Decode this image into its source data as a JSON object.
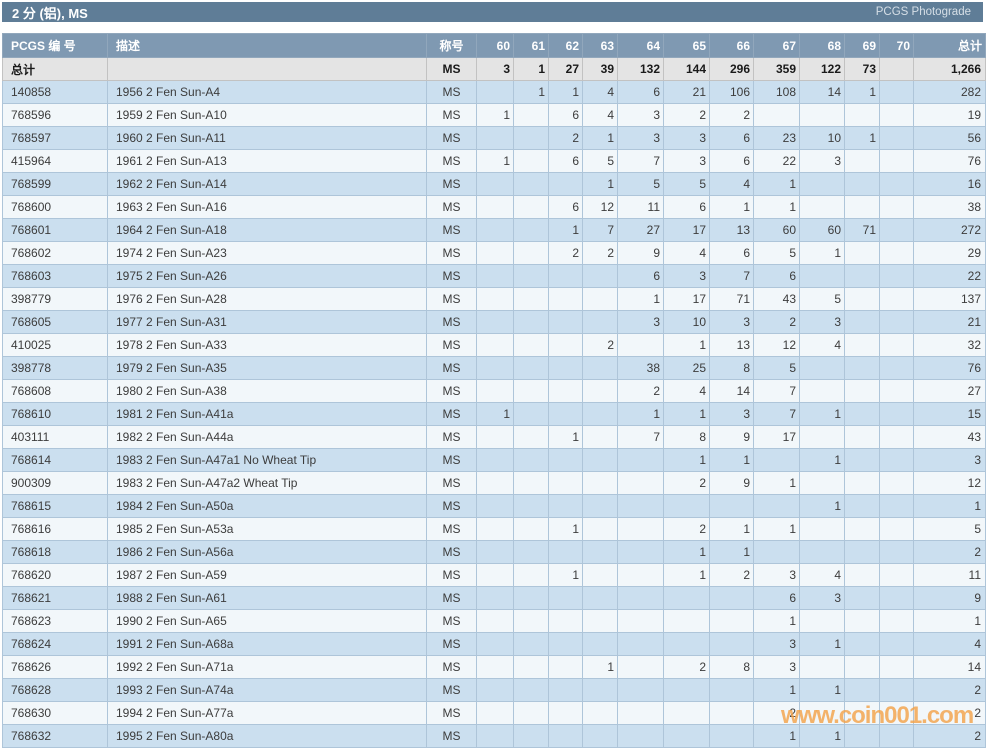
{
  "title_bar": {
    "title": "2 分 (铝), MS",
    "right_link": "PCGS Photograde"
  },
  "watermark": "www.coin001.com",
  "colors": {
    "title_bar_bg": "#5F7D97",
    "header_bg": "#7F99B2",
    "row_blue": "#CBDFEF",
    "row_white": "#F2F7FA",
    "totals_bg": "#E4E4E4",
    "pcgs_link": "#BE7A52",
    "watermark": "#F3A046"
  },
  "table": {
    "columns": [
      "PCGS 编 号",
      "描述",
      "称号",
      "60",
      "61",
      "62",
      "63",
      "64",
      "65",
      "66",
      "67",
      "68",
      "69",
      "70",
      "总计"
    ],
    "totals": {
      "label": "总计",
      "desc": "",
      "designation": "MS",
      "grades": [
        "3",
        "1",
        "27",
        "39",
        "132",
        "144",
        "296",
        "359",
        "122",
        "73",
        ""
      ],
      "total": "1,266"
    },
    "rows": [
      {
        "pcgs": "140858",
        "desc": "1956 2 Fen Sun-A4",
        "designation": "MS",
        "grades": [
          "",
          "1",
          "1",
          "4",
          "6",
          "21",
          "106",
          "108",
          "14",
          "1",
          ""
        ],
        "total": "282"
      },
      {
        "pcgs": "768596",
        "desc": "1959 2 Fen Sun-A10",
        "designation": "MS",
        "grades": [
          "1",
          "",
          "6",
          "4",
          "3",
          "2",
          "2",
          "",
          "",
          "",
          ""
        ],
        "total": "19"
      },
      {
        "pcgs": "768597",
        "desc": "1960 2 Fen Sun-A11",
        "designation": "MS",
        "grades": [
          "",
          "",
          "2",
          "1",
          "3",
          "3",
          "6",
          "23",
          "10",
          "1",
          ""
        ],
        "total": "56"
      },
      {
        "pcgs": "415964",
        "desc": "1961 2 Fen Sun-A13",
        "designation": "MS",
        "grades": [
          "1",
          "",
          "6",
          "5",
          "7",
          "3",
          "6",
          "22",
          "3",
          "",
          ""
        ],
        "total": "76"
      },
      {
        "pcgs": "768599",
        "desc": "1962 2 Fen Sun-A14",
        "designation": "MS",
        "grades": [
          "",
          "",
          "",
          "1",
          "5",
          "5",
          "4",
          "1",
          "",
          "",
          ""
        ],
        "total": "16"
      },
      {
        "pcgs": "768600",
        "desc": "1963 2 Fen Sun-A16",
        "designation": "MS",
        "grades": [
          "",
          "",
          "6",
          "12",
          "11",
          "6",
          "1",
          "1",
          "",
          "",
          ""
        ],
        "total": "38"
      },
      {
        "pcgs": "768601",
        "desc": "1964 2 Fen Sun-A18",
        "designation": "MS",
        "grades": [
          "",
          "",
          "1",
          "7",
          "27",
          "17",
          "13",
          "60",
          "60",
          "71",
          ""
        ],
        "total": "272"
      },
      {
        "pcgs": "768602",
        "desc": "1974 2 Fen Sun-A23",
        "designation": "MS",
        "grades": [
          "",
          "",
          "2",
          "2",
          "9",
          "4",
          "6",
          "5",
          "1",
          "",
          ""
        ],
        "total": "29"
      },
      {
        "pcgs": "768603",
        "desc": "1975 2 Fen Sun-A26",
        "designation": "MS",
        "grades": [
          "",
          "",
          "",
          "",
          "6",
          "3",
          "7",
          "6",
          "",
          "",
          ""
        ],
        "total": "22"
      },
      {
        "pcgs": "398779",
        "desc": "1976 2 Fen Sun-A28",
        "designation": "MS",
        "grades": [
          "",
          "",
          "",
          "",
          "1",
          "17",
          "71",
          "43",
          "5",
          "",
          ""
        ],
        "total": "137"
      },
      {
        "pcgs": "768605",
        "desc": "1977 2 Fen Sun-A31",
        "designation": "MS",
        "grades": [
          "",
          "",
          "",
          "",
          "3",
          "10",
          "3",
          "2",
          "3",
          "",
          ""
        ],
        "total": "21"
      },
      {
        "pcgs": "410025",
        "desc": "1978 2 Fen Sun-A33",
        "designation": "MS",
        "grades": [
          "",
          "",
          "",
          "2",
          "",
          "1",
          "13",
          "12",
          "4",
          "",
          ""
        ],
        "total": "32"
      },
      {
        "pcgs": "398778",
        "desc": "1979 2 Fen Sun-A35",
        "designation": "MS",
        "grades": [
          "",
          "",
          "",
          "",
          "38",
          "25",
          "8",
          "5",
          "",
          "",
          ""
        ],
        "total": "76"
      },
      {
        "pcgs": "768608",
        "desc": "1980 2 Fen Sun-A38",
        "designation": "MS",
        "grades": [
          "",
          "",
          "",
          "",
          "2",
          "4",
          "14",
          "7",
          "",
          "",
          ""
        ],
        "total": "27"
      },
      {
        "pcgs": "768610",
        "desc": "1981 2 Fen Sun-A41a",
        "designation": "MS",
        "grades": [
          "1",
          "",
          "",
          "",
          "1",
          "1",
          "3",
          "7",
          "1",
          "",
          ""
        ],
        "total": "15"
      },
      {
        "pcgs": "403111",
        "desc": "1982 2 Fen Sun-A44a",
        "designation": "MS",
        "grades": [
          "",
          "",
          "1",
          "",
          "7",
          "8",
          "9",
          "17",
          "",
          "",
          ""
        ],
        "total": "43"
      },
      {
        "pcgs": "768614",
        "desc": "1983 2 Fen Sun-A47a1 No Wheat Tip",
        "designation": "MS",
        "grades": [
          "",
          "",
          "",
          "",
          "",
          "1",
          "1",
          "",
          "1",
          "",
          ""
        ],
        "total": "3"
      },
      {
        "pcgs": "900309",
        "desc": "1983 2 Fen Sun-A47a2 Wheat Tip",
        "designation": "MS",
        "grades": [
          "",
          "",
          "",
          "",
          "",
          "2",
          "9",
          "1",
          "",
          "",
          ""
        ],
        "total": "12"
      },
      {
        "pcgs": "768615",
        "desc": "1984 2 Fen Sun-A50a",
        "designation": "MS",
        "grades": [
          "",
          "",
          "",
          "",
          "",
          "",
          "",
          "",
          "1",
          "",
          ""
        ],
        "total": "1"
      },
      {
        "pcgs": "768616",
        "desc": "1985 2 Fen Sun-A53a",
        "designation": "MS",
        "grades": [
          "",
          "",
          "1",
          "",
          "",
          "2",
          "1",
          "1",
          "",
          "",
          ""
        ],
        "total": "5"
      },
      {
        "pcgs": "768618",
        "desc": "1986 2 Fen Sun-A56a",
        "designation": "MS",
        "grades": [
          "",
          "",
          "",
          "",
          "",
          "1",
          "1",
          "",
          "",
          "",
          ""
        ],
        "total": "2"
      },
      {
        "pcgs": "768620",
        "desc": "1987 2 Fen Sun-A59",
        "designation": "MS",
        "grades": [
          "",
          "",
          "1",
          "",
          "",
          "1",
          "2",
          "3",
          "4",
          "",
          ""
        ],
        "total": "11"
      },
      {
        "pcgs": "768621",
        "desc": "1988 2 Fen Sun-A61",
        "designation": "MS",
        "grades": [
          "",
          "",
          "",
          "",
          "",
          "",
          "",
          "6",
          "3",
          "",
          ""
        ],
        "total": "9"
      },
      {
        "pcgs": "768623",
        "desc": "1990 2 Fen Sun-A65",
        "designation": "MS",
        "grades": [
          "",
          "",
          "",
          "",
          "",
          "",
          "",
          "1",
          "",
          "",
          ""
        ],
        "total": "1"
      },
      {
        "pcgs": "768624",
        "desc": "1991 2 Fen Sun-A68a",
        "designation": "MS",
        "grades": [
          "",
          "",
          "",
          "",
          "",
          "",
          "",
          "3",
          "1",
          "",
          ""
        ],
        "total": "4"
      },
      {
        "pcgs": "768626",
        "desc": "1992 2 Fen Sun-A71a",
        "designation": "MS",
        "grades": [
          "",
          "",
          "",
          "1",
          "",
          "2",
          "8",
          "3",
          "",
          "",
          ""
        ],
        "total": "14"
      },
      {
        "pcgs": "768628",
        "desc": "1993 2 Fen Sun-A74a",
        "designation": "MS",
        "grades": [
          "",
          "",
          "",
          "",
          "",
          "",
          "",
          "1",
          "1",
          "",
          ""
        ],
        "total": "2"
      },
      {
        "pcgs": "768630",
        "desc": "1994 2 Fen Sun-A77a",
        "designation": "MS",
        "grades": [
          "",
          "",
          "",
          "",
          "",
          "",
          "",
          "2",
          "",
          "",
          ""
        ],
        "total": "2"
      },
      {
        "pcgs": "768632",
        "desc": "1995 2 Fen Sun-A80a",
        "designation": "MS",
        "grades": [
          "",
          "",
          "",
          "",
          "",
          "",
          "",
          "1",
          "1",
          "",
          ""
        ],
        "total": "2"
      }
    ]
  }
}
